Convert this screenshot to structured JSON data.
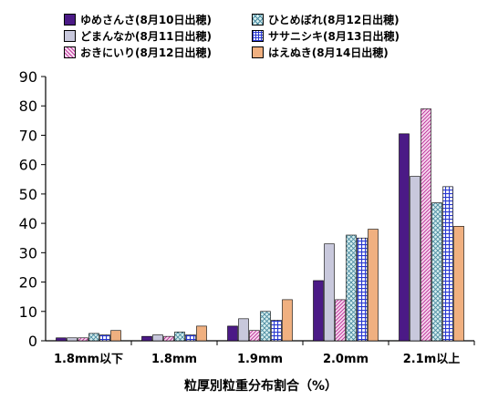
{
  "chart_data": {
    "type": "bar",
    "xlabel": "粒厚別粒重分布割合（%）",
    "ylabel": "",
    "ylim": [
      0,
      90
    ],
    "yticks": [
      0,
      10,
      20,
      30,
      40,
      50,
      60,
      70,
      80,
      90
    ],
    "grid": false,
    "legend_position": "top",
    "categories": [
      "1.8mm以下",
      "1.8mm",
      "1.9mm",
      "2.0mm",
      "2.1m以上"
    ],
    "series": [
      {
        "name": "ゆめさんさ(8月10日出穂)",
        "values": [
          1.0,
          1.5,
          5.0,
          20.5,
          70.5
        ],
        "color": "#4b1a86",
        "pattern": "solid"
      },
      {
        "name": "どまんなか(8月11日出穂)",
        "values": [
          1.0,
          2.0,
          7.5,
          33.0,
          56.0
        ],
        "color": "#c8c8dc",
        "pattern": "solid"
      },
      {
        "name": "おきにいり(8月12日出穂)",
        "values": [
          1.0,
          1.5,
          3.5,
          14.0,
          79.0
        ],
        "color": "#e8a8d8",
        "pattern": "diagonal"
      },
      {
        "name": "ひとめぼれ(8月12日出穂)",
        "values": [
          2.5,
          3.0,
          10.0,
          36.0,
          47.0
        ],
        "color": "#a8d8e0",
        "pattern": "crosshatch"
      },
      {
        "name": "ササニシキ(8月13日出穂)",
        "values": [
          2.0,
          2.0,
          7.0,
          35.0,
          52.5
        ],
        "color": "#6070e8",
        "pattern": "grid"
      },
      {
        "name": "はえぬき(8月14日出穂)",
        "values": [
          3.5,
          5.0,
          14.0,
          38.0,
          39.0
        ],
        "color": "#f0b080",
        "pattern": "solid"
      }
    ]
  }
}
